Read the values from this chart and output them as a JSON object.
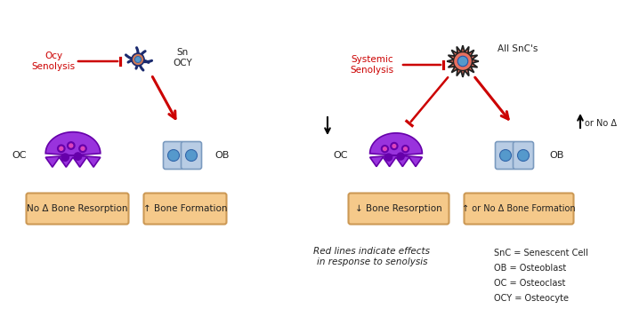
{
  "bg_color": "#ffffff",
  "arrow_color": "#cc0000",
  "oc_purple": "#9933dd",
  "oc_purple_dark": "#6600aa",
  "oc_spot_pink": "#dd44bb",
  "ob_body": "#b8cce4",
  "ob_body_edge": "#7a9abf",
  "ob_nucleus": "#5599cc",
  "ocy_body": "#cc7755",
  "ocy_arms": "#1a2a6e",
  "snc_body": "#e87060",
  "snc_edge": "#222222",
  "snc_nucleus": "#5599cc",
  "box_fill": "#f5c98a",
  "box_edge": "#cc9955",
  "text_color": "#222222",
  "label_left_ocy_senolysis": "Ocy\nSenolysis",
  "label_left_sn_ocy": "Sn\nOCY",
  "label_left_oc": "OC",
  "label_left_ob": "OB",
  "label_left_box1": "No Δ Bone Resorption",
  "label_left_box2": "↑ Bone Formation",
  "label_right_senolysis": "Systemic\nSenolysis",
  "label_right_snc": "All SnC's",
  "label_right_oc": "OC",
  "label_right_ob": "OB",
  "label_right_box1": "↓ Bone Resorption",
  "label_right_box2": "↑ or No Δ Bone Formation",
  "label_bottom_note": "Red lines indicate effects\nin response to senolysis",
  "legend_snc": "SnC = Senescent Cell",
  "legend_ob": "OB = Osteoblast",
  "legend_oc": "OC = Osteoclast",
  "legend_ocy": "OCY = Osteocyte"
}
